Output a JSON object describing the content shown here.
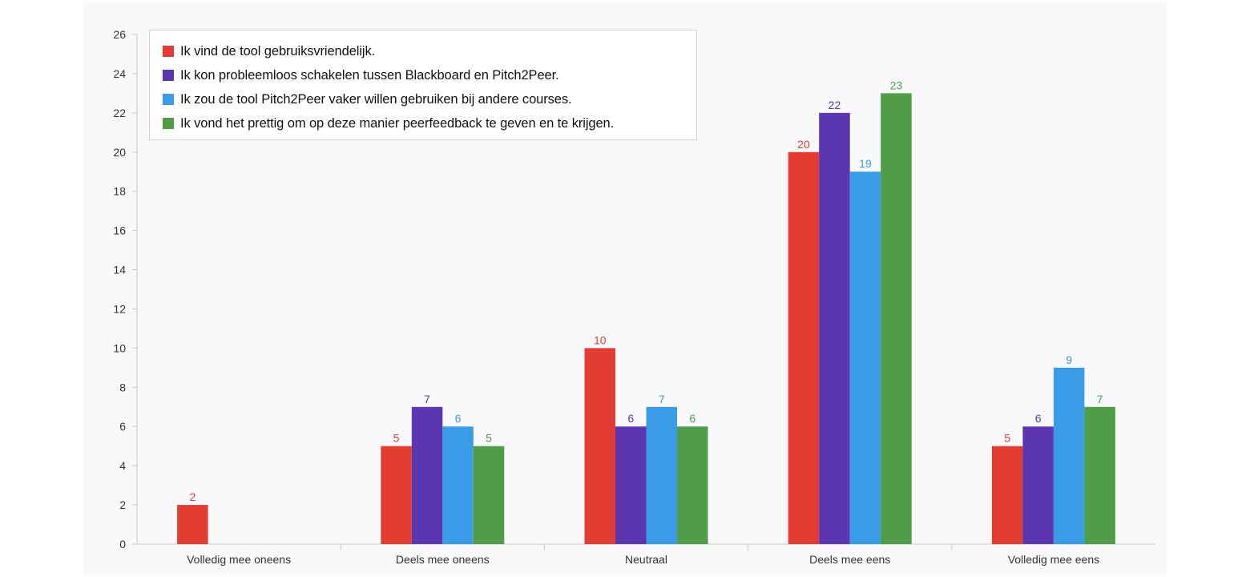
{
  "chart_data": {
    "type": "bar",
    "title": "",
    "xlabel": "",
    "ylabel": "",
    "ylim": [
      0,
      26
    ],
    "yticks": [
      0,
      2,
      4,
      6,
      8,
      10,
      12,
      14,
      16,
      18,
      20,
      22,
      24,
      26
    ],
    "grid": false,
    "legend_position": "top-left",
    "categories": [
      "Volledig mee oneens",
      "Deels mee oneens",
      "Neutraal",
      "Deels mee eens",
      "Volledig mee eens"
    ],
    "series": [
      {
        "name": "Ik vind de tool gebruiksvriendelijk.",
        "color": "#e23c33",
        "values": [
          2,
          5,
          10,
          20,
          5
        ]
      },
      {
        "name": "Ik kon probleemloos schakelen tussen Blackboard en Pitch2Peer.",
        "color": "#5c35b1",
        "values": [
          0,
          7,
          6,
          22,
          6
        ]
      },
      {
        "name": "Ik zou de tool Pitch2Peer vaker willen gebruiken bij andere courses.",
        "color": "#3a9be6",
        "values": [
          0,
          6,
          7,
          19,
          9
        ]
      },
      {
        "name": "Ik vond het prettig om op deze manier peerfeedback te geven en te krijgen.",
        "color": "#4f9d47",
        "values": [
          0,
          5,
          6,
          23,
          7
        ]
      }
    ]
  }
}
